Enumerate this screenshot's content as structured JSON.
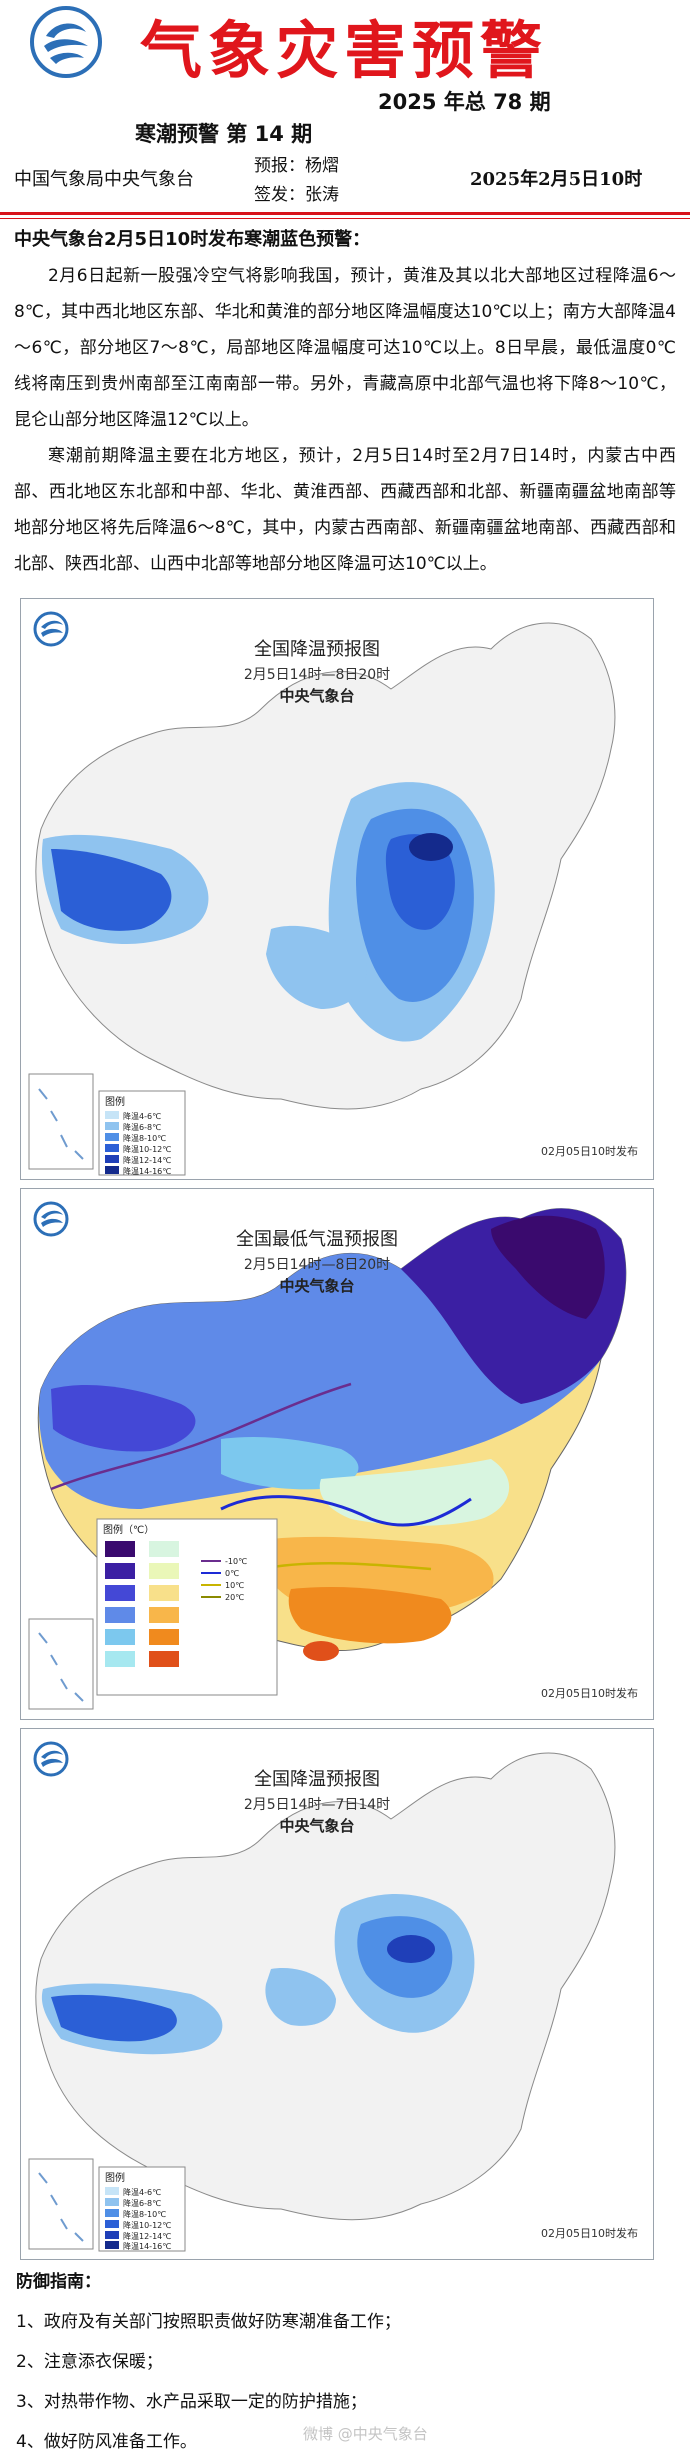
{
  "header": {
    "title": "气象灾害预警",
    "issue_total": "2025 年总 78 期",
    "issue_number": "寒潮预警 第 14 期",
    "agency": "中国气象局中央气象台",
    "forecaster": "预报：杨熠",
    "signer": "签发：张涛",
    "date": "2025年2月5日10时"
  },
  "body": {
    "headline": "中央气象台2月5日10时发布寒潮蓝色预警：",
    "paragraphs": [
      "2月6日起新一股强冷空气将影响我国，预计，黄淮及其以北大部地区过程降温6～8℃，其中西北地区东部、华北和黄淮的部分地区降温幅度达10℃以上；南方大部降温4～6℃，部分地区7～8℃，局部地区降温幅度可达10℃以上。8日早晨，最低温度0℃线将南压到贵州南部至江南南部一带。另外，青藏高原中北部气温也将下降8～10℃，昆仑山部分地区降温12℃以上。",
      "寒潮前期降温主要在北方地区，预计，2月5日14时至2月7日14时，内蒙古中西部、西北地区东北部和中部、华北、黄淮西部、西藏西部和北部、新疆南疆盆地南部等地部分地区将先后降温6～8℃，其中，内蒙古西南部、新疆南疆盆地南部、西藏西部和北部、陕西北部、山西中北部等地部分地区降温可达10℃以上。"
    ]
  },
  "maps": [
    {
      "title": "全国降温预报图",
      "period": "2月5日14时—8日20时",
      "source": "中央气象台",
      "issued": "02月05日10时发布",
      "legend_title": "图例",
      "legend": [
        "降温4-6℃",
        "降温6-8℃",
        "降温8-10℃",
        "降温10-12℃",
        "降温12-14℃",
        "降温14-16℃"
      ],
      "colors": [
        "#c6e4f7",
        "#8fc3ef",
        "#4f8fe6",
        "#2b5fd6",
        "#1f3fb8",
        "#142a8c"
      ]
    },
    {
      "title": "全国最低气温预报图",
      "period": "2月5日14时—8日20时",
      "source": "中央气象台",
      "issued": "02月05日10时发布",
      "legend_title": "图例（℃）",
      "line_legend": [
        "-10℃",
        "0℃",
        "10℃",
        "20℃"
      ],
      "line_colors": [
        "#6a2d8e",
        "#1d2bd6",
        "#c8b400",
        "#8a8a00"
      ],
      "colors": [
        "#3a0a6e",
        "#3b1fa3",
        "#4448d6",
        "#5f8ae8",
        "#7cc8ee",
        "#a6e8f0",
        "#d8f5e0",
        "#eaf7b8",
        "#f8e08a",
        "#f8b64a",
        "#f08a1e",
        "#e0501a"
      ]
    },
    {
      "title": "全国降温预报图",
      "period": "2月5日14时—7日14时",
      "source": "中央气象台",
      "issued": "02月05日10时发布",
      "legend_title": "图例",
      "legend": [
        "降温4-6℃",
        "降温6-8℃",
        "降温8-10℃",
        "降温10-12℃",
        "降温12-14℃",
        "降温14-16℃"
      ],
      "colors": [
        "#c6e4f7",
        "#8fc3ef",
        "#4f8fe6",
        "#2b5fd6",
        "#1f3fb8",
        "#142a8c"
      ]
    }
  ],
  "guide": {
    "title": "防御指南：",
    "items": [
      "1、政府及有关部门按照职责做好防寒潮准备工作；",
      "2、注意添衣保暖；",
      "3、对热带作物、水产品采取一定的防护措施；",
      "4、做好防风准备工作。"
    ]
  },
  "watermark": "微博 @中央气象台"
}
